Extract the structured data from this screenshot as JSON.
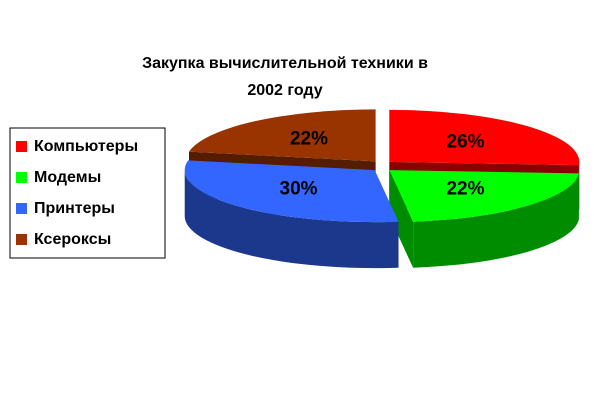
{
  "chart_data": {
    "type": "pie3d",
    "title": "Закупка вычислительной техники в 2002 году",
    "categories": [
      "Компьютеры",
      "Модемы",
      "Принтеры",
      "Ксероксы"
    ],
    "values": [
      26,
      22,
      30,
      22
    ],
    "value_labels": [
      "26%",
      "22%",
      "30%",
      "22%"
    ],
    "colors": [
      "#ff0000",
      "#00ff00",
      "#3366ff",
      "#993300"
    ],
    "legend": "left"
  }
}
